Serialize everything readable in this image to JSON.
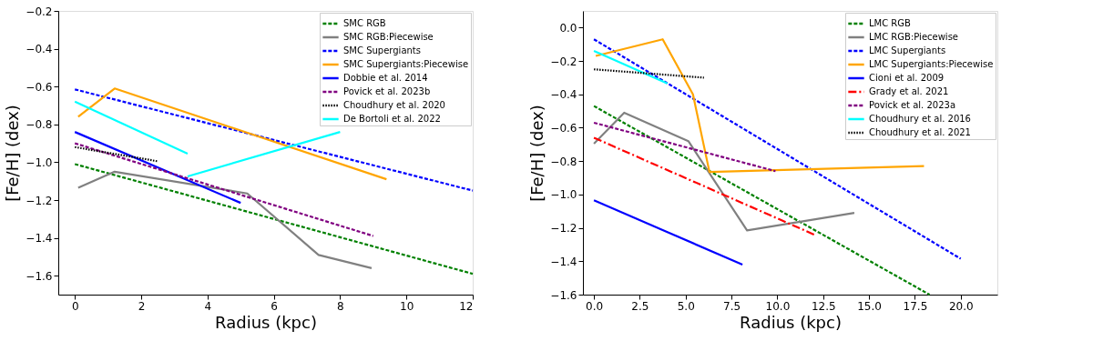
{
  "chart_data": [
    {
      "type": "line",
      "xlabel": "Radius (kpc)",
      "ylabel": "[Fe/H] (dex)",
      "xlim": [
        -0.5,
        12
      ],
      "ylim": [
        -1.7,
        -0.2
      ],
      "xticks": [
        0,
        2,
        4,
        6,
        8,
        10,
        12
      ],
      "yticks": [
        {
          "value": -1.6,
          "label": "−1.6"
        },
        {
          "value": -1.4,
          "label": "−1.4"
        },
        {
          "value": -1.2,
          "label": "−1.2"
        },
        {
          "value": -1.0,
          "label": "−1.0"
        },
        {
          "value": -0.8,
          "label": "−0.8"
        },
        {
          "value": -0.6,
          "label": "−0.6"
        },
        {
          "value": -0.4,
          "label": "−0.4"
        },
        {
          "value": -0.2,
          "label": "−0.2"
        }
      ],
      "grid": false,
      "legend": "top right",
      "series": [
        {
          "name": "SMC RGB",
          "color": "#008000",
          "line_style": "dashed",
          "x": [
            0,
            12
          ],
          "values": [
            -1.01,
            -1.59
          ]
        },
        {
          "name": "SMC RGB:Piecewise",
          "color": "#808080",
          "line_style": "solid",
          "x": [
            0.1,
            1.2,
            5.2,
            7.35,
            8.95
          ],
          "values": [
            -1.135,
            -1.05,
            -1.165,
            -1.49,
            -1.56
          ]
        },
        {
          "name": "SMC Supergiants",
          "color": "#0000ff",
          "line_style": "dashed",
          "x": [
            0,
            12
          ],
          "values": [
            -0.615,
            -1.15
          ]
        },
        {
          "name": "SMC Supergiants:Piecewise",
          "color": "#ffa500",
          "line_style": "solid",
          "x": [
            0.1,
            1.2,
            9.4
          ],
          "values": [
            -0.76,
            -0.61,
            -1.09
          ]
        },
        {
          "name": "Dobbie et al. 2014",
          "color": "#0000ff",
          "line_style": "solid",
          "x": [
            0,
            5
          ],
          "values": [
            -0.84,
            -1.215
          ]
        },
        {
          "name": "Povick et al. 2023b",
          "color": "#800080",
          "line_style": "dashed",
          "x": [
            0,
            9
          ],
          "values": [
            -0.9,
            -1.39
          ]
        },
        {
          "name": "Choudhury et al. 2020",
          "color": "#000000",
          "line_style": "dotted",
          "x": [
            0,
            2.5
          ],
          "values": [
            -0.92,
            -0.995
          ]
        },
        {
          "name": "De Bortoli et al. 2022",
          "color": "#00ffff",
          "line_style": "solid",
          "x": [
            0,
            3.4,
            null,
            3.4,
            8
          ],
          "values": [
            -0.68,
            -0.955,
            null,
            -1.075,
            -0.84
          ]
        }
      ]
    },
    {
      "type": "line",
      "xlabel": "Radius (kpc)",
      "ylabel": "[Fe/H] (dex)",
      "xlim": [
        -0.6,
        22
      ],
      "ylim": [
        -1.6,
        0.1
      ],
      "xticks": [
        {
          "value": 0,
          "label": "0.0"
        },
        {
          "value": 2.5,
          "label": "2.5"
        },
        {
          "value": 5,
          "label": "5.0"
        },
        {
          "value": 7.5,
          "label": "7.5"
        },
        {
          "value": 10,
          "label": "10.0"
        },
        {
          "value": 12.5,
          "label": "12.5"
        },
        {
          "value": 15,
          "label": "15.0"
        },
        {
          "value": 17.5,
          "label": "17.5"
        },
        {
          "value": 20,
          "label": "20.0"
        }
      ],
      "yticks": [
        {
          "value": -1.6,
          "label": "−1.6"
        },
        {
          "value": -1.4,
          "label": "−1.4"
        },
        {
          "value": -1.2,
          "label": "−1.2"
        },
        {
          "value": -1.0,
          "label": "−1.0"
        },
        {
          "value": -0.8,
          "label": "−0.8"
        },
        {
          "value": -0.6,
          "label": "−0.6"
        },
        {
          "value": -0.4,
          "label": "−0.4"
        },
        {
          "value": -0.2,
          "label": "−0.2"
        },
        {
          "value": 0,
          "label": "0.0"
        }
      ],
      "grid": false,
      "legend": "top right",
      "series": [
        {
          "name": "LMC RGB",
          "color": "#008000",
          "line_style": "dashed",
          "x": [
            0,
            18.3
          ],
          "values": [
            -0.47,
            -1.6
          ]
        },
        {
          "name": "LMC RGB:Piecewise",
          "color": "#808080",
          "line_style": "solid",
          "x": [
            0,
            1.65,
            5.15,
            8.35,
            14.2
          ],
          "values": [
            -0.695,
            -0.51,
            -0.68,
            -1.215,
            -1.11
          ]
        },
        {
          "name": "LMC Supergiants",
          "color": "#0000ff",
          "line_style": "dashed",
          "x": [
            0,
            20
          ],
          "values": [
            -0.07,
            -1.385
          ]
        },
        {
          "name": "LMC Supergiants:Piecewise",
          "color": "#ffa500",
          "line_style": "solid",
          "x": [
            0.1,
            3.75,
            5.4,
            6.3,
            18
          ],
          "values": [
            -0.17,
            -0.07,
            -0.4,
            -0.865,
            -0.83
          ]
        },
        {
          "name": "Cioni et al. 2009",
          "color": "#0000ff",
          "line_style": "solid",
          "x": [
            0,
            8.1
          ],
          "values": [
            -1.035,
            -1.42
          ]
        },
        {
          "name": "Grady et al. 2021",
          "color": "#ff0000",
          "line_style": "dashdot",
          "x": [
            0,
            12
          ],
          "values": [
            -0.66,
            -1.24
          ]
        },
        {
          "name": "Povick et al. 2023a",
          "color": "#800080",
          "line_style": "dashed",
          "x": [
            0,
            9.9
          ],
          "values": [
            -0.57,
            -0.86
          ]
        },
        {
          "name": "Choudhury et al. 2016",
          "color": "#00ffff",
          "line_style": "solid",
          "x": [
            0,
            4
          ],
          "values": [
            -0.14,
            -0.335
          ]
        },
        {
          "name": "Choudhury et al. 2021",
          "color": "#000000",
          "line_style": "dotted",
          "x": [
            0,
            6
          ],
          "values": [
            -0.25,
            -0.3
          ]
        }
      ]
    }
  ]
}
